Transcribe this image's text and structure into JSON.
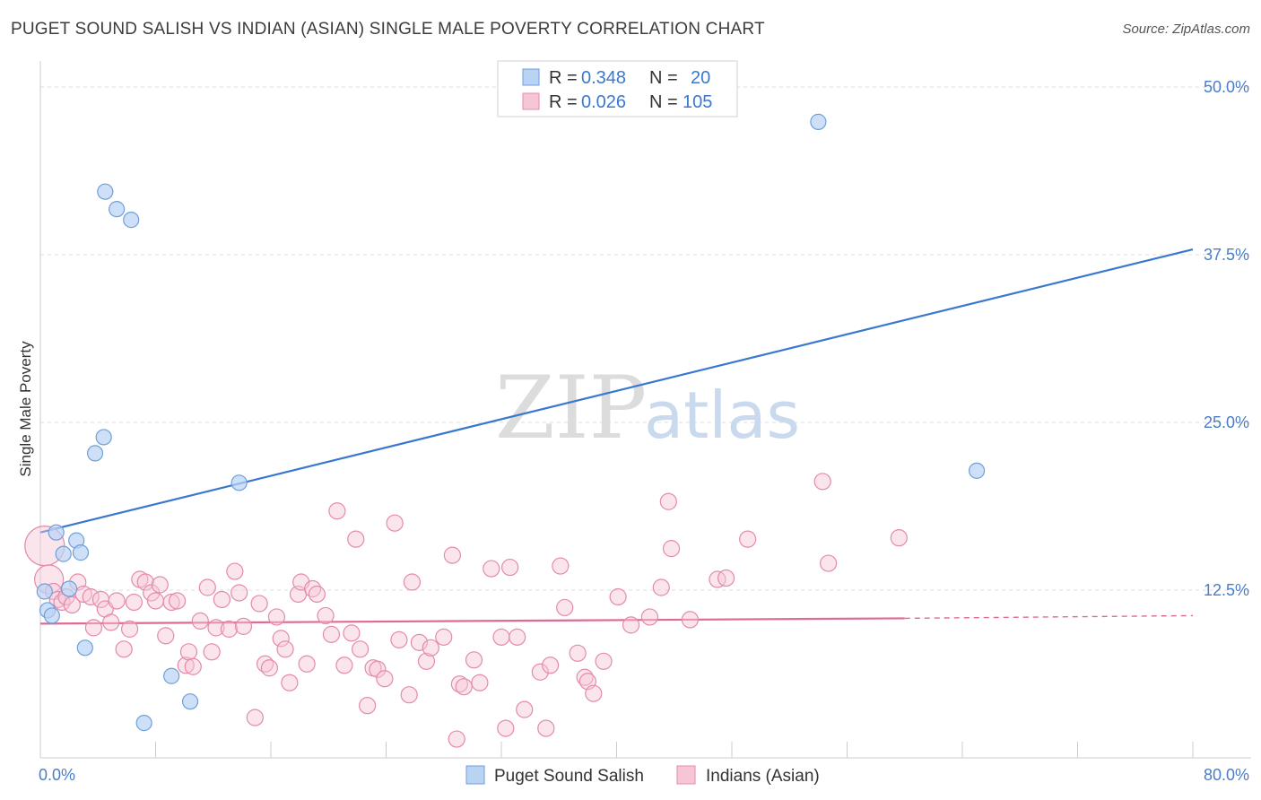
{
  "title": "PUGET SOUND SALISH VS INDIAN (ASIAN) SINGLE MALE POVERTY CORRELATION CHART",
  "source": "Source: ZipAtlas.com",
  "watermark": {
    "zip": "ZIP",
    "atlas": "atlas"
  },
  "colors": {
    "blue": "#3a78d0",
    "blue_fill": "#b9d3f3",
    "blue_stroke": "#6f9fd9",
    "pink": "#e06a95",
    "pink_fill": "#f7c6d6",
    "pink_stroke": "#e48aab",
    "grid": "#dddddd"
  },
  "legend": {
    "rows": [
      {
        "r_label": "R =",
        "r_value": "0.348",
        "n_label": "N =",
        "n_value": "20"
      },
      {
        "r_label": "R =",
        "r_value": "0.026",
        "n_label": "N =",
        "n_value": "105"
      }
    ]
  },
  "chart_data": {
    "type": "scatter",
    "title": "PUGET SOUND SALISH VS INDIAN (ASIAN) SINGLE MALE POVERTY CORRELATION CHART",
    "xlabel": "",
    "ylabel": "Single Male Poverty",
    "xlim": [
      0,
      80
    ],
    "ylim": [
      0,
      50
    ],
    "x_tick_labels": [
      "0.0%",
      "80.0%"
    ],
    "y_ticks": [
      12.5,
      25.0,
      37.5,
      50.0
    ],
    "y_tick_labels": [
      "12.5%",
      "25.0%",
      "37.5%",
      "50.0%"
    ],
    "legend_position": "top-center",
    "series": [
      {
        "name": "Puget Sound Salish",
        "r": 0.348,
        "n": 20,
        "trend": {
          "x": [
            0,
            80
          ],
          "y": [
            16.8,
            37.9
          ]
        },
        "points": [
          [
            0.3,
            12.4
          ],
          [
            0.5,
            11.0
          ],
          [
            0.8,
            10.6
          ],
          [
            1.1,
            16.8
          ],
          [
            1.6,
            15.2
          ],
          [
            2.0,
            12.6
          ],
          [
            2.5,
            16.2
          ],
          [
            2.8,
            15.3
          ],
          [
            3.1,
            8.2
          ],
          [
            3.8,
            22.7
          ],
          [
            4.4,
            23.9
          ],
          [
            4.5,
            42.2
          ],
          [
            5.3,
            40.9
          ],
          [
            6.3,
            40.1
          ],
          [
            7.2,
            2.6
          ],
          [
            9.1,
            6.1
          ],
          [
            10.4,
            4.2
          ],
          [
            13.8,
            20.5
          ],
          [
            54.0,
            47.4
          ],
          [
            65.0,
            21.4
          ]
        ]
      },
      {
        "name": "Indians (Asian)",
        "r": 0.026,
        "n": 105,
        "trend": {
          "x": [
            0,
            60
          ],
          "y": [
            10.0,
            10.4
          ]
        },
        "trend_dashed": {
          "x": [
            60,
            80
          ],
          "y": [
            10.4,
            10.6
          ]
        },
        "points": [
          [
            0.3,
            15.8
          ],
          [
            0.6,
            13.3
          ],
          [
            0.9,
            12.4
          ],
          [
            1.2,
            11.8
          ],
          [
            1.5,
            11.6
          ],
          [
            1.8,
            12.0
          ],
          [
            2.2,
            11.4
          ],
          [
            2.6,
            13.1
          ],
          [
            3.0,
            12.2
          ],
          [
            3.5,
            12.0
          ],
          [
            3.7,
            9.7
          ],
          [
            4.2,
            11.8
          ],
          [
            4.5,
            11.1
          ],
          [
            4.9,
            10.1
          ],
          [
            5.3,
            11.7
          ],
          [
            5.8,
            8.1
          ],
          [
            6.2,
            9.6
          ],
          [
            6.5,
            11.6
          ],
          [
            6.9,
            13.3
          ],
          [
            7.3,
            13.1
          ],
          [
            7.7,
            12.3
          ],
          [
            8.0,
            11.7
          ],
          [
            8.3,
            12.9
          ],
          [
            8.7,
            9.1
          ],
          [
            9.1,
            11.6
          ],
          [
            9.5,
            11.7
          ],
          [
            10.1,
            6.9
          ],
          [
            10.3,
            7.9
          ],
          [
            10.6,
            6.8
          ],
          [
            11.1,
            10.2
          ],
          [
            11.6,
            12.7
          ],
          [
            11.9,
            7.9
          ],
          [
            12.2,
            9.7
          ],
          [
            12.6,
            11.8
          ],
          [
            13.1,
            9.6
          ],
          [
            13.5,
            13.9
          ],
          [
            13.8,
            12.3
          ],
          [
            14.1,
            9.8
          ],
          [
            14.9,
            3.0
          ],
          [
            15.2,
            11.5
          ],
          [
            15.6,
            7.0
          ],
          [
            15.9,
            6.7
          ],
          [
            16.4,
            10.5
          ],
          [
            16.7,
            8.9
          ],
          [
            17.0,
            8.1
          ],
          [
            17.3,
            5.6
          ],
          [
            17.9,
            12.2
          ],
          [
            18.1,
            13.1
          ],
          [
            18.5,
            7.0
          ],
          [
            18.9,
            12.6
          ],
          [
            19.2,
            12.2
          ],
          [
            19.8,
            10.6
          ],
          [
            20.2,
            9.2
          ],
          [
            20.6,
            18.4
          ],
          [
            21.1,
            6.9
          ],
          [
            21.6,
            9.3
          ],
          [
            21.9,
            16.3
          ],
          [
            22.2,
            8.1
          ],
          [
            22.7,
            3.9
          ],
          [
            23.1,
            6.7
          ],
          [
            23.4,
            6.6
          ],
          [
            23.9,
            5.9
          ],
          [
            24.6,
            17.5
          ],
          [
            24.9,
            8.8
          ],
          [
            25.6,
            4.7
          ],
          [
            25.8,
            13.1
          ],
          [
            26.3,
            8.6
          ],
          [
            26.8,
            7.2
          ],
          [
            27.1,
            8.2
          ],
          [
            28.0,
            9.0
          ],
          [
            28.6,
            15.1
          ],
          [
            28.9,
            1.4
          ],
          [
            29.1,
            5.5
          ],
          [
            29.4,
            5.3
          ],
          [
            30.1,
            7.3
          ],
          [
            30.5,
            5.6
          ],
          [
            31.3,
            14.1
          ],
          [
            32.0,
            9.0
          ],
          [
            32.3,
            2.2
          ],
          [
            32.6,
            14.2
          ],
          [
            33.1,
            9.0
          ],
          [
            33.6,
            3.6
          ],
          [
            34.7,
            6.4
          ],
          [
            35.1,
            2.2
          ],
          [
            35.4,
            6.9
          ],
          [
            36.1,
            14.3
          ],
          [
            36.4,
            11.2
          ],
          [
            37.3,
            7.8
          ],
          [
            37.8,
            6.0
          ],
          [
            38.0,
            5.7
          ],
          [
            38.4,
            4.8
          ],
          [
            39.1,
            7.2
          ],
          [
            40.1,
            12.0
          ],
          [
            41.0,
            9.9
          ],
          [
            42.3,
            10.5
          ],
          [
            43.1,
            12.7
          ],
          [
            43.6,
            19.1
          ],
          [
            43.8,
            15.6
          ],
          [
            45.1,
            10.3
          ],
          [
            47.0,
            13.3
          ],
          [
            47.6,
            13.4
          ],
          [
            49.1,
            16.3
          ],
          [
            54.3,
            20.6
          ],
          [
            54.7,
            14.5
          ],
          [
            59.6,
            16.4
          ]
        ]
      }
    ]
  },
  "bottom_legend": [
    {
      "label": "Puget Sound Salish"
    },
    {
      "label": "Indians (Asian)"
    }
  ]
}
